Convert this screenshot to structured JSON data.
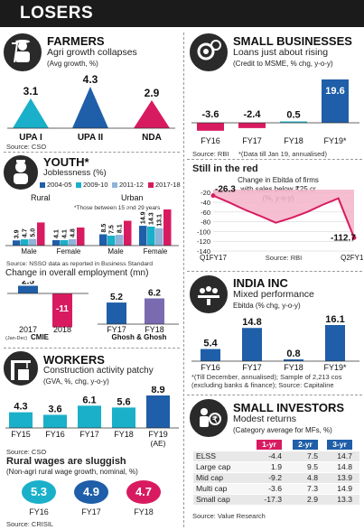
{
  "page": {
    "title": "LOSERS"
  },
  "farmers": {
    "title": "FARMERS",
    "subtitle": "Agri growth collapses",
    "note": "(Avg growth, %)",
    "source": "Source: CSO",
    "icon": "farmer-icon",
    "chart_data": {
      "type": "triangle-bar",
      "title": "Agri growth collapses",
      "ylabel": "Avg growth, %",
      "categories": [
        "UPA I",
        "UPA II",
        "NDA"
      ],
      "values": [
        3.1,
        4.3,
        2.9
      ],
      "colors": [
        "#1ab0c9",
        "#1f5ea8",
        "#d81b60"
      ]
    }
  },
  "youth": {
    "title": "YOUTH*",
    "subtitle": "Joblessness (%)",
    "note": "*Those between 15 and 29 years",
    "source": "Source: NSSO data as reported in Business Standard",
    "icon": "youth-icon",
    "groups": [
      "Rural",
      "Urban"
    ],
    "chart_data": {
      "type": "bar",
      "categories": [
        "Male",
        "Female",
        "Male",
        "Female"
      ],
      "series": [
        {
          "name": "2004-05",
          "values": [
            3.9,
            4.1,
            8.5,
            14.9
          ],
          "color": "#1f5ea8"
        },
        {
          "name": "2009-10",
          "values": [
            4.7,
            4.1,
            7.5,
            14.3
          ],
          "color": "#1ab0c9"
        },
        {
          "name": "2011-12",
          "values": [
            5.0,
            4.8,
            8.1,
            13.1
          ],
          "color": "#8fb3d9"
        },
        {
          "name": "2017-18",
          "values": [
            17.4,
            13.6,
            18.7,
            27.2
          ],
          "color": "#d81b60"
        }
      ]
    }
  },
  "employment": {
    "title": "Change in overall employment (mn)",
    "cmie": {
      "label": "CMIE",
      "sublabel": "(Jan-Dec)",
      "chart_data": {
        "type": "bar",
        "categories": [
          "2017",
          "2018"
        ],
        "values": [
          2.5,
          -11
        ],
        "colors": [
          "#1f5ea8",
          "#d81b60"
        ]
      }
    },
    "ghosh": {
      "label": "Ghosh & Ghosh",
      "chart_data": {
        "type": "bar",
        "categories": [
          "FY17",
          "FY18"
        ],
        "values": [
          5.2,
          6.2
        ],
        "colors": [
          "#1f5ea8",
          "#7a6bb0"
        ]
      }
    }
  },
  "workers": {
    "title": "WORKERS",
    "subtitle": "Construction activity patchy",
    "note": "(GVA, %, chg, y-o-y)",
    "source": "Source: CSO",
    "icon": "construction-icon",
    "chart_data": {
      "type": "bar",
      "categories": [
        "FY15",
        "FY16",
        "FY17",
        "FY18",
        "FY19"
      ],
      "category_notes": [
        "",
        "",
        "",
        "",
        "(AE)"
      ],
      "values": [
        4.3,
        3.6,
        6.1,
        5.6,
        8.9
      ],
      "colors": [
        "#1ab0c9",
        "#1ab0c9",
        "#1ab0c9",
        "#1ab0c9",
        "#1f5ea8"
      ]
    }
  },
  "rural_wages": {
    "title": "Rural wages are sluggish",
    "note": "(Non-agri rural wage growth, nominal, %)",
    "source": "Source: CRISIL",
    "chart_data": {
      "type": "bubble",
      "categories": [
        "FY16",
        "FY17",
        "FY18"
      ],
      "values": [
        5.3,
        4.9,
        4.7
      ],
      "colors": [
        "#1ab0c9",
        "#1f5ea8",
        "#d81b60"
      ]
    }
  },
  "small_business": {
    "title": "SMALL BUSINESSES",
    "subtitle": "Loans just about rising",
    "note": "(Credit to MSME, % chg, y-o-y)",
    "source": "Source: RBI",
    "footnote": "*(Data till Jan 19, annualised)",
    "icon": "business-icon",
    "chart_data": {
      "type": "bar",
      "categories": [
        "FY16",
        "FY17",
        "FY18",
        "FY19*"
      ],
      "values": [
        -3.6,
        -2.4,
        0.5,
        19.6
      ],
      "colors": [
        "#d81b60",
        "#d81b60",
        "#1ab0c9",
        "#1f5ea8"
      ]
    }
  },
  "still_red": {
    "title": "Still in the red",
    "note": "Change in Ebitda of firms with sales below ₹25 cr (%, y-o-y)",
    "source": "Source: RBI",
    "chart_data": {
      "type": "area",
      "x": [
        "Q1FY17",
        "Q2FY17",
        "Q3FY17",
        "Q4FY17",
        "Q1FY18",
        "Q2FY18",
        "Q3FY18",
        "Q4FY18",
        "Q1FY19",
        "Q2FY19"
      ],
      "x_tick_labels": [
        "Q1FY17",
        "Q2FY19"
      ],
      "values": [
        -26.3,
        -40,
        -55,
        -68,
        -82,
        -72,
        -60,
        -45,
        -32,
        -112.7
      ],
      "labeled_values": [
        "-26.3",
        "",
        "",
        "",
        "",
        "",
        "",
        "",
        "",
        "-112.7"
      ],
      "yticks": [
        -20,
        -40,
        -60,
        -80,
        -100,
        -120,
        -140
      ],
      "ylim": [
        -140,
        -14
      ],
      "color": "#d81b60"
    }
  },
  "india_inc": {
    "title": "INDIA INC",
    "subtitle": "Mixed performance",
    "note": "Ebitda (% chg, y-o-y)",
    "footnote": "*(Till December, annualised); Sample of 2,213 cos (excluding banks & finance); Source: Capitaline",
    "icon": "boardroom-icon",
    "chart_data": {
      "type": "bar",
      "categories": [
        "FY16",
        "FY17",
        "FY18",
        "FY19*"
      ],
      "values": [
        5.4,
        14.8,
        0.8,
        16.1
      ],
      "color": "#1f5ea8"
    }
  },
  "small_investors": {
    "title": "SMALL INVESTORS",
    "subtitle": "Modest returns",
    "note": "(Category average for MFs, %)",
    "source": "Source: Value Research",
    "icon": "investor-icon",
    "chart_data": {
      "type": "table",
      "columns": [
        "1-yr",
        "2-yr",
        "3-yr"
      ],
      "column_colors": [
        "#d81b60",
        "#1f5ea8",
        "#1f5ea8"
      ],
      "rows": [
        {
          "label": "ELSS",
          "values": [
            "-4.4",
            "7.5",
            "14.7"
          ]
        },
        {
          "label": "Large cap",
          "values": [
            "1.9",
            "9.5",
            "14.8"
          ]
        },
        {
          "label": "Mid cap",
          "values": [
            "-9.2",
            "4.8",
            "13.9"
          ]
        },
        {
          "label": "Multi cap",
          "values": [
            "-3.6",
            "7.3",
            "14.9"
          ]
        },
        {
          "label": "Small cap",
          "values": [
            "-17.3",
            "2.9",
            "13.3"
          ]
        }
      ]
    }
  }
}
